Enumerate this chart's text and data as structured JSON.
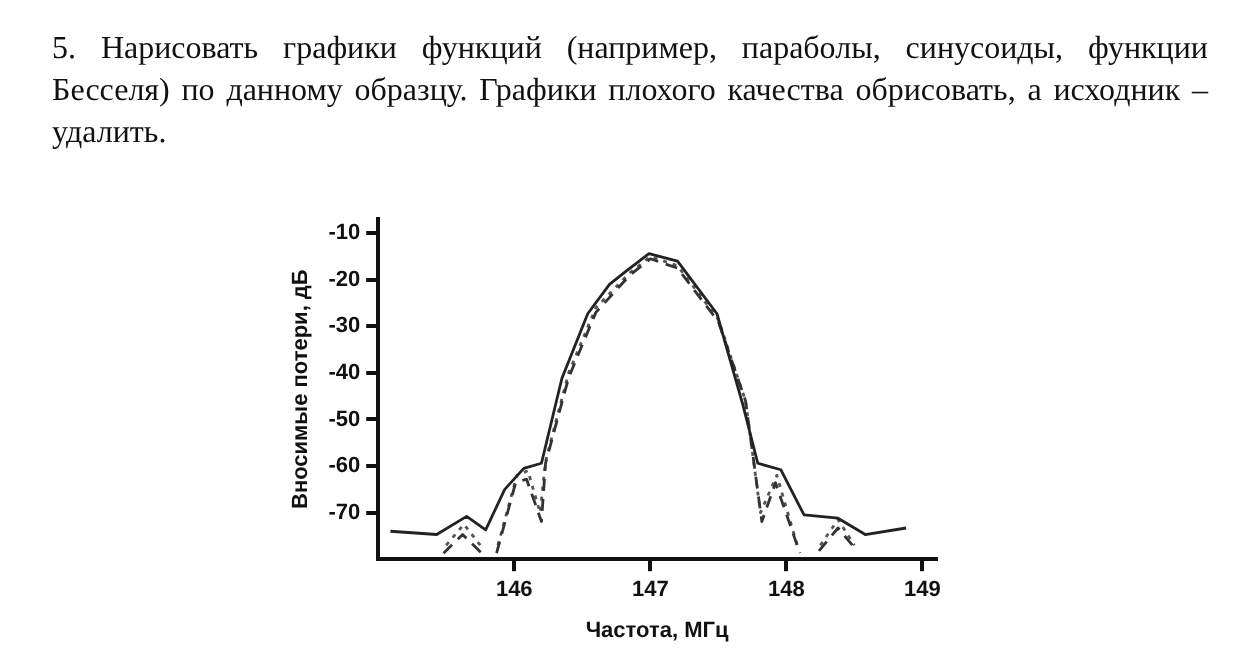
{
  "chart_data": {
    "type": "line",
    "title": "5. Нарисовать графики функций (например, параболы, синусоиды, функции Бесселя) по данному образцу. Графики плохого качества обрисовать, а исходник – удалить.",
    "xlabel": "Частота, МГц",
    "ylabel": "Вносимые потери, дБ",
    "xlim": [
      145,
      149.1
    ],
    "ylim": [
      -80,
      -7
    ],
    "xticks": [
      146,
      147,
      148,
      149
    ],
    "yticks": [
      -10,
      -20,
      -30,
      -40,
      -50,
      -60,
      -70
    ],
    "grid": false,
    "legend": false,
    "marker": "none",
    "series": [
      {
        "color": "#222222",
        "line_style": "solid",
        "x": [
          145.09,
          145.43,
          145.65,
          145.79,
          145.93,
          146.07,
          146.2,
          146.35,
          146.54,
          146.7,
          146.82,
          146.99,
          147.2,
          147.49,
          147.68,
          147.79,
          147.96,
          148.13,
          148.38,
          148.58,
          148.88
        ],
        "values": [
          -74,
          -74.7,
          -70.8,
          -73.7,
          -65,
          -60.5,
          -59.4,
          -41.2,
          -27.3,
          -21,
          -18.2,
          -14.4,
          -16,
          -27.3,
          -46.8,
          -59.4,
          -60.8,
          -70.5,
          -71.2,
          -74.7,
          -73.3
        ]
      },
      {
        "color": "#333333",
        "line_style": "dashed",
        "x": [
          145.48,
          145.62,
          145.76,
          145.82,
          145.87,
          146.01,
          146.09,
          146.2,
          146.23,
          146.4,
          146.6,
          146.85,
          147,
          147.2,
          147.5,
          147.7,
          147.82,
          147.92,
          148.1,
          148.17,
          148.24,
          148.38,
          148.52
        ],
        "values": [
          -78.7,
          -74.7,
          -78.7,
          null,
          -78.7,
          -63.6,
          -62.8,
          -71.9,
          -59.4,
          -41,
          -27,
          -19,
          -15.5,
          -17.5,
          -29,
          -46,
          -71.9,
          -63.6,
          -78.7,
          null,
          -78.2,
          -73.3,
          -78.2
        ]
      },
      {
        "color": "#555555",
        "line_style": "dotted",
        "x": [
          145.5,
          145.63,
          145.75,
          145.82,
          145.88,
          146.02,
          146.1,
          146.19,
          146.23,
          146.4,
          146.6,
          146.85,
          147,
          147.2,
          147.5,
          147.7,
          147.81,
          147.93,
          148.08,
          148.16,
          148.25,
          148.38,
          148.5
        ],
        "values": [
          -77,
          -72.5,
          -77,
          null,
          -77,
          -62,
          -61,
          -70,
          -59,
          -40,
          -26,
          -18.5,
          -15,
          -17,
          -28.5,
          -46,
          -70,
          -62,
          -77,
          null,
          -77,
          -71.5,
          -77
        ]
      }
    ]
  }
}
